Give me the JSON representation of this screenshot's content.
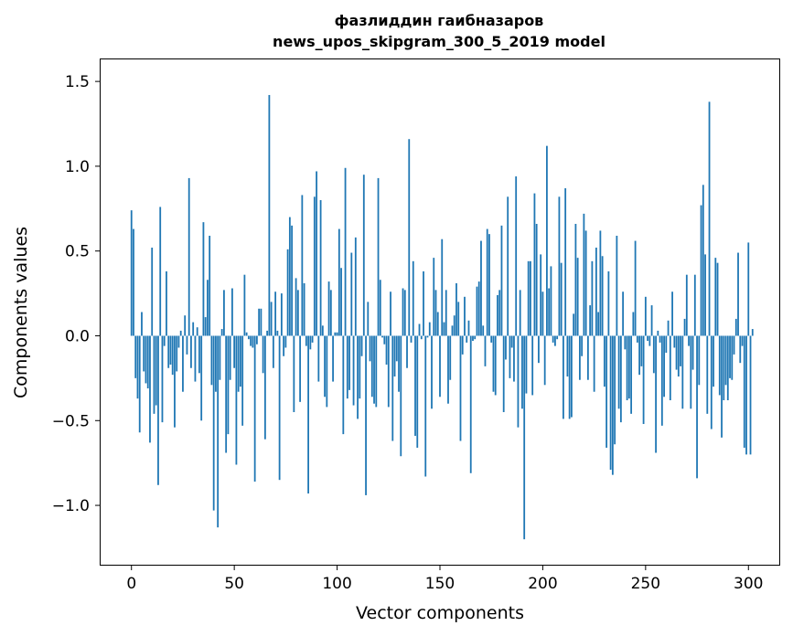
{
  "chart_data": {
    "type": "bar",
    "title_line1": "фазлиддин гаибназаров",
    "title_line2": "news_upos_skipgram_300_5_2019 model",
    "xlabel": "Vector components",
    "ylabel": "Components values",
    "xlim": [
      -15,
      315
    ],
    "ylim": [
      -1.35,
      1.63
    ],
    "xticks": [
      0,
      50,
      100,
      150,
      200,
      250,
      300
    ],
    "xtick_labels": [
      "0",
      "50",
      "100",
      "150",
      "200",
      "250",
      "300"
    ],
    "yticks": [
      -1.0,
      -0.5,
      0.0,
      0.5,
      1.0,
      1.5
    ],
    "ytick_labels": [
      "−1.0",
      "−0.5",
      "0.0",
      "0.5",
      "1.0",
      "1.5"
    ],
    "bar_color": "#1f77b4",
    "grid": false,
    "series": [
      {
        "name": "components",
        "x_start": 0,
        "values": [
          0.74,
          0.63,
          -0.25,
          -0.37,
          -0.57,
          0.14,
          -0.21,
          -0.28,
          -0.31,
          -0.63,
          0.52,
          -0.46,
          -0.41,
          -0.88,
          0.76,
          -0.51,
          -0.06,
          0.38,
          -0.19,
          -0.17,
          -0.23,
          -0.54,
          -0.21,
          -0.07,
          0.03,
          -0.33,
          0.12,
          -0.11,
          0.93,
          -0.19,
          0.08,
          -0.27,
          0.05,
          -0.22,
          -0.5,
          0.67,
          0.11,
          0.33,
          0.59,
          -0.29,
          -1.03,
          -0.33,
          -1.13,
          -0.26,
          0.04,
          0.27,
          -0.69,
          -0.58,
          -0.26,
          0.28,
          -0.19,
          -0.76,
          -0.33,
          -0.3,
          -0.53,
          0.36,
          0.02,
          -0.02,
          -0.06,
          -0.07,
          -0.86,
          -0.05,
          0.16,
          0.16,
          -0.22,
          -0.61,
          0.03,
          1.42,
          0.2,
          -0.19,
          0.26,
          0.03,
          -0.85,
          0.25,
          -0.12,
          -0.07,
          0.51,
          0.7,
          0.65,
          -0.45,
          0.34,
          0.27,
          -0.39,
          0.83,
          0.31,
          -0.06,
          -0.93,
          -0.08,
          -0.04,
          0.82,
          0.97,
          -0.27,
          0.8,
          0.06,
          -0.36,
          -0.42,
          0.32,
          0.27,
          -0.27,
          0.02,
          0.02,
          0.63,
          0.4,
          -0.58,
          0.99,
          -0.37,
          -0.32,
          0.49,
          -0.41,
          0.58,
          -0.49,
          -0.37,
          -0.12,
          0.95,
          -0.94,
          0.2,
          -0.15,
          -0.36,
          -0.4,
          -0.42,
          0.93,
          0.33,
          -0.01,
          -0.05,
          -0.17,
          -0.42,
          0.26,
          -0.62,
          -0.24,
          -0.15,
          -0.33,
          -0.71,
          0.28,
          0.27,
          -0.19,
          1.16,
          -0.04,
          0.44,
          -0.59,
          -0.66,
          0.07,
          -0.02,
          0.38,
          -0.83,
          -0.01,
          0.08,
          -0.43,
          0.46,
          0.27,
          0.14,
          -0.36,
          0.57,
          0.08,
          0.27,
          -0.4,
          -0.26,
          0.06,
          0.12,
          0.31,
          0.2,
          -0.62,
          -0.11,
          0.23,
          -0.04,
          0.09,
          -0.81,
          -0.03,
          -0.02,
          0.29,
          0.32,
          0.56,
          0.06,
          -0.18,
          0.63,
          0.6,
          -0.04,
          -0.33,
          -0.35,
          0.24,
          0.27,
          0.65,
          -0.45,
          -0.14,
          0.82,
          -0.25,
          -0.07,
          -0.27,
          0.94,
          -0.54,
          0.27,
          -0.43,
          -1.2,
          -0.34,
          0.44,
          0.44,
          -0.35,
          0.84,
          0.66,
          -0.16,
          0.48,
          0.26,
          -0.29,
          1.12,
          0.28,
          0.41,
          -0.04,
          -0.06,
          -0.02,
          0.82,
          0.43,
          -0.49,
          0.87,
          -0.24,
          -0.49,
          -0.48,
          0.13,
          0.66,
          0.46,
          -0.26,
          -0.12,
          0.72,
          0.62,
          -0.26,
          0.18,
          0.44,
          -0.33,
          0.52,
          0.14,
          0.62,
          0.47,
          -0.3,
          -0.66,
          0.38,
          -0.79,
          -0.82,
          -0.64,
          0.59,
          -0.43,
          -0.51,
          0.26,
          -0.08,
          -0.38,
          -0.37,
          -0.46,
          0.14,
          0.56,
          -0.04,
          -0.23,
          -0.18,
          -0.52,
          0.23,
          -0.03,
          -0.06,
          0.18,
          -0.22,
          -0.69,
          0.03,
          -0.04,
          -0.53,
          -0.36,
          -0.1,
          0.09,
          -0.38,
          0.26,
          -0.07,
          -0.2,
          -0.24,
          -0.18,
          -0.43,
          0.1,
          0.36,
          -0.06,
          -0.43,
          -0.2,
          0.36,
          -0.84,
          -0.29,
          0.77,
          0.89,
          0.48,
          -0.46,
          1.38,
          -0.55,
          -0.3,
          0.46,
          0.43,
          -0.35,
          -0.6,
          -0.38,
          -0.29,
          -0.38,
          -0.25,
          -0.26,
          -0.11,
          0.1,
          0.49,
          -0.16,
          -0.06,
          -0.66,
          -0.7,
          0.55,
          -0.7,
          0.04
        ]
      }
    ]
  }
}
